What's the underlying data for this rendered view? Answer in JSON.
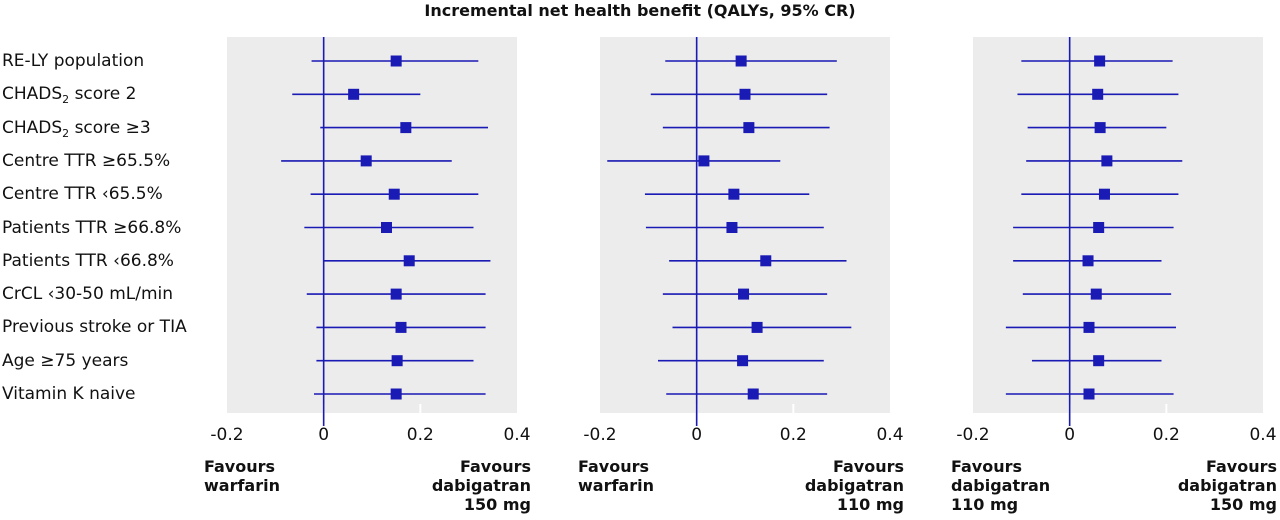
{
  "chart_data": {
    "type": "forest",
    "title": "Incremental net health benefit (QALYs, 95% CR)",
    "xlim": [
      -0.2,
      0.4
    ],
    "ticks": [
      -0.2,
      0,
      0.2,
      0.4
    ],
    "tick_labels": [
      "-0.2",
      "0",
      "0.2",
      "0.4"
    ],
    "rows": [
      {
        "pre": "RE-LY population",
        "sub": "",
        "post": ""
      },
      {
        "pre": "CHADS",
        "sub": "2",
        "post": " score 2"
      },
      {
        "pre": "CHADS",
        "sub": "2",
        "post": " score ≥3"
      },
      {
        "pre": "Centre TTR ≥65.5%",
        "sub": "",
        "post": ""
      },
      {
        "pre": "Centre TTR ‹65.5%",
        "sub": "",
        "post": ""
      },
      {
        "pre": "Patients TTR ≥66.8%",
        "sub": "",
        "post": ""
      },
      {
        "pre": "Patients TTR ‹66.8%",
        "sub": "",
        "post": ""
      },
      {
        "pre": "CrCL ‹30-50 mL/min",
        "sub": "",
        "post": ""
      },
      {
        "pre": "Previous stroke or TIA",
        "sub": "",
        "post": ""
      },
      {
        "pre": "Age ≥75 years",
        "sub": "",
        "post": ""
      },
      {
        "pre": "Vitamin K naive",
        "sub": "",
        "post": ""
      }
    ],
    "panels": [
      {
        "left_label": [
          "Favours",
          "warfarin"
        ],
        "right_label": [
          "Favours",
          "dabigatran",
          "150 mg"
        ],
        "estimates": [
          0.15,
          0.062,
          0.17,
          0.088,
          0.146,
          0.13,
          0.177,
          0.15,
          0.16,
          0.152,
          0.15
        ],
        "lower": [
          -0.025,
          -0.065,
          -0.007,
          -0.088,
          -0.027,
          -0.04,
          0.0,
          -0.035,
          -0.015,
          -0.015,
          -0.02
        ],
        "upper": [
          0.32,
          0.2,
          0.34,
          0.265,
          0.32,
          0.31,
          0.345,
          0.335,
          0.335,
          0.31,
          0.335
        ]
      },
      {
        "left_label": [
          "Favours",
          "warfarin"
        ],
        "right_label": [
          "Favours",
          "dabigatran",
          "110 mg"
        ],
        "estimates": [
          0.092,
          0.1,
          0.108,
          0.015,
          0.077,
          0.073,
          0.143,
          0.097,
          0.125,
          0.095,
          0.117
        ],
        "lower": [
          -0.065,
          -0.095,
          -0.07,
          -0.185,
          -0.107,
          -0.105,
          -0.057,
          -0.07,
          -0.05,
          -0.08,
          -0.063
        ],
        "upper": [
          0.29,
          0.27,
          0.275,
          0.173,
          0.233,
          0.263,
          0.31,
          0.27,
          0.32,
          0.263,
          0.27
        ]
      },
      {
        "left_label": [
          "Favours",
          "dabigatran",
          "110 mg"
        ],
        "right_label": [
          "Favours",
          "dabigatran",
          "150 mg"
        ],
        "estimates": [
          0.062,
          0.058,
          0.063,
          0.077,
          0.072,
          0.06,
          0.038,
          0.055,
          0.04,
          0.06,
          0.04
        ],
        "lower": [
          -0.1,
          -0.108,
          -0.087,
          -0.09,
          -0.1,
          -0.117,
          -0.117,
          -0.097,
          -0.132,
          -0.078,
          -0.132
        ],
        "upper": [
          0.213,
          0.225,
          0.2,
          0.233,
          0.225,
          0.215,
          0.19,
          0.21,
          0.22,
          0.19,
          0.215
        ]
      }
    ]
  }
}
